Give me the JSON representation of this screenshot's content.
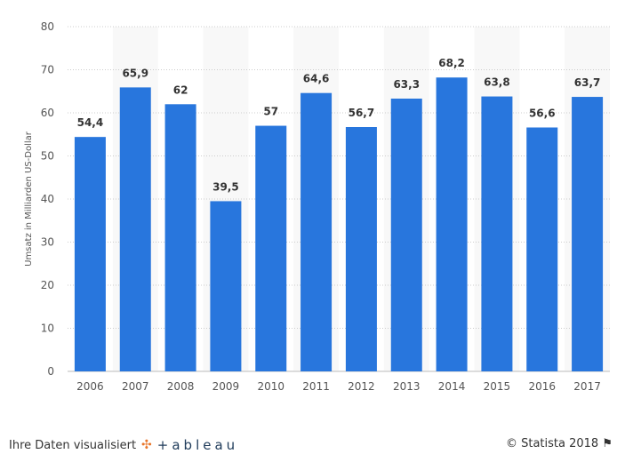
{
  "chart_data": {
    "type": "bar",
    "categories": [
      "2006",
      "2007",
      "2008",
      "2009",
      "2010",
      "2011",
      "2012",
      "2013",
      "2014",
      "2015",
      "2016",
      "2017"
    ],
    "values": [
      54.4,
      65.9,
      62,
      39.5,
      57,
      64.6,
      56.7,
      63.3,
      68.2,
      63.8,
      56.6,
      63.7
    ],
    "value_labels": [
      "54,4",
      "65,9",
      "62",
      "39,5",
      "57",
      "64,6",
      "56,7",
      "63,3",
      "68,2",
      "63,8",
      "56,6",
      "63,7"
    ],
    "title": "",
    "xlabel": "",
    "ylabel": "Umsatz in Milliarden US-Dollar",
    "ylim": [
      0,
      80
    ],
    "yticks": [
      0,
      10,
      20,
      30,
      40,
      50,
      60,
      70,
      80
    ],
    "grid": true,
    "bar_color": "#2876dd"
  },
  "footer": {
    "credit": "Ihre Daten visualisiert",
    "brand": "+ableau",
    "copyright": "© Statista 2018"
  }
}
